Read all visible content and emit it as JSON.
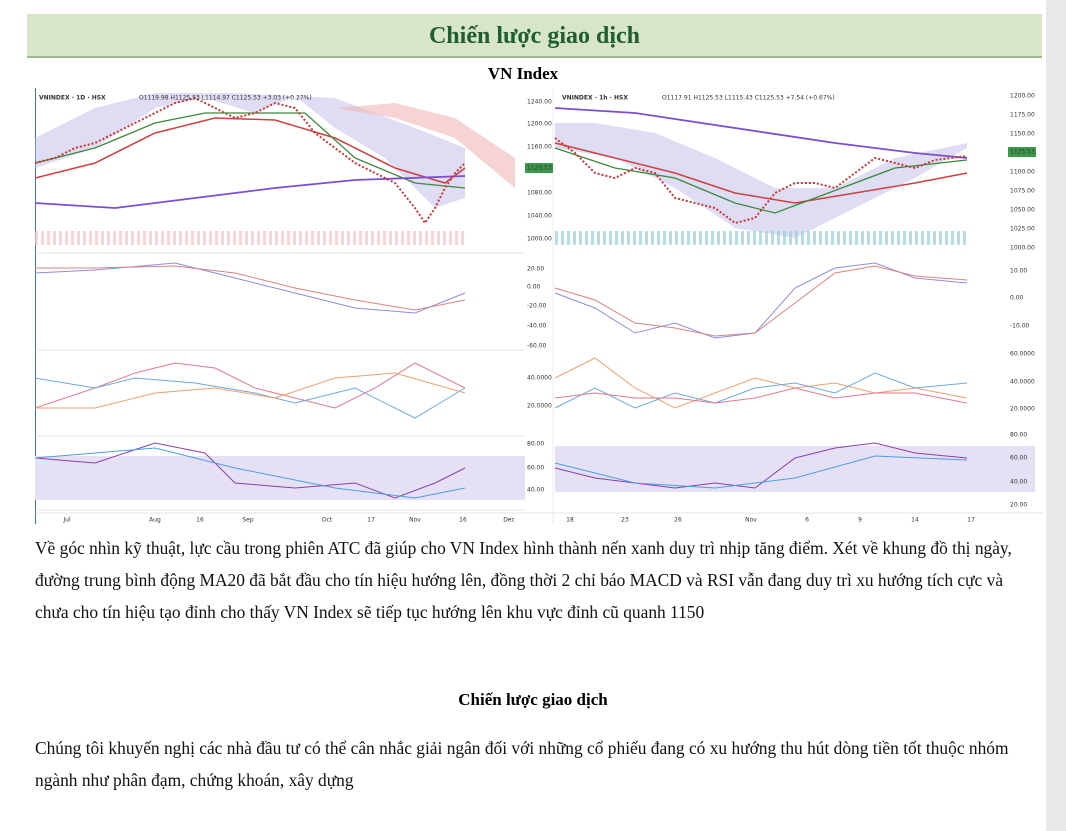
{
  "header": {
    "title": "Chiến lược giao dịch",
    "subtitle": "VN Index"
  },
  "charts": {
    "left": {
      "symbol": "VNINDEX · 1D · HSX",
      "ohlc": "O1119.98 H1125.53 L1114.97 C1125.53 +3.03 (+0.27%)",
      "axis_labels": [
        "1240.00",
        "1200.00",
        "1160.00",
        "1125.53",
        "1080.00",
        "1040.00",
        "1000.00",
        "20.00",
        "0.00",
        "-20.00",
        "-40.00",
        "-60.00",
        "40.0000",
        "20.0000",
        "80.00",
        "60.00",
        "40.00"
      ],
      "x_labels": [
        "Jul",
        "Aug",
        "16",
        "Sep",
        "Oct",
        "17",
        "Nov",
        "16",
        "Dec"
      ]
    },
    "right": {
      "symbol": "VNINDEX · 1h · HSX",
      "ohlc": "O1117.91 H1125.53 L1115.43 C1125.53 +7.54 (+0.67%)",
      "axis_labels": [
        "1200.00",
        "1175.00",
        "1150.00",
        "1125.53",
        "1100.00",
        "1075.00",
        "1050.00",
        "1025.00",
        "1000.00",
        "10.00",
        "0.00",
        "-10.00",
        "60.0000",
        "40.0000",
        "20.0000",
        "80.00",
        "60.00",
        "40.00",
        "20.00"
      ],
      "x_labels": [
        "18",
        "23",
        "26",
        "Nov",
        "6",
        "9",
        "14",
        "17"
      ]
    }
  },
  "body": {
    "paragraphs": [
      "Về góc nhìn kỹ thuật, lực cầu trong phiên ATC đã giúp cho VN Index hình thành nến xanh duy trì nhịp tăng điểm.  Xét về khung đồ thị ngày, đường trung bình động MA20 đã bắt đầu cho tín hiệu hướng lên, đồng thời 2 chỉ báo MACD và RSI vẫn đang duy trì xu hướng tích cực và chưa cho tín hiệu tạo đỉnh cho thấy VN Index sẽ tiếp tục hướng lên khu vực đỉnh cũ quanh 1150",
      "Chúng tôi khuyến nghị các nhà đầu tư có thể cân nhắc giải ngân đối với những cổ phiếu đang có xu hướng thu hút dòng tiền tốt thuộc nhóm ngành như phân đạm, chứng khoán, xây dựng"
    ],
    "heading": "Chiến lược giao dịch"
  }
}
